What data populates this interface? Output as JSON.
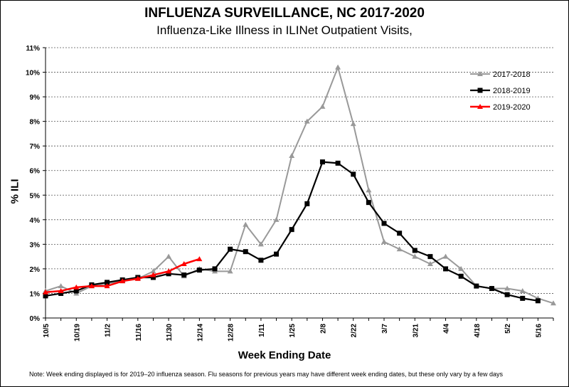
{
  "chart_data": {
    "type": "line",
    "title": "INFLUENZA SURVEILLANCE, NC 2017-2020",
    "subtitle": "Influenza-Like Illness in ILINet Outpatient Visits,",
    "xlabel": "Week Ending Date",
    "ylabel": "% ILI",
    "note": "Note:  Week ending displayed is for 2019–20 influenza season. Flu seasons for previous years may have different week ending dates, but these only vary by a few days",
    "x_tick_labels": [
      "10/5",
      "10/19",
      "11/2",
      "11/16",
      "11/30",
      "12/14",
      "12/28",
      "1/11",
      "1/25",
      "2/8",
      "2/22",
      "3/7",
      "3/21",
      "4/4",
      "4/18",
      "5/2",
      "5/16"
    ],
    "ylim": [
      0,
      11
    ],
    "y_tick_labels": [
      "0%",
      "1%",
      "2%",
      "3%",
      "4%",
      "5%",
      "6%",
      "7%",
      "8%",
      "9%",
      "10%",
      "11%"
    ],
    "grid": "horizontal dashed",
    "legend_position": "top-right",
    "series": [
      {
        "name": "2017-2018",
        "color": "#999999",
        "marker": "triangle",
        "values": [
          1.1,
          1.3,
          1.0,
          1.3,
          1.4,
          1.5,
          1.6,
          1.9,
          2.5,
          1.7,
          2.0,
          1.9,
          1.9,
          3.8,
          3.0,
          4.0,
          6.6,
          8.0,
          8.6,
          10.2,
          7.9,
          5.2,
          3.1,
          2.8,
          2.5,
          2.2,
          2.5,
          2.0,
          1.3,
          1.2,
          1.2,
          1.1,
          0.8,
          0.6
        ]
      },
      {
        "name": "2018-2019",
        "color": "#000000",
        "marker": "square",
        "values": [
          0.9,
          1.0,
          1.1,
          1.35,
          1.45,
          1.55,
          1.65,
          1.65,
          1.8,
          1.75,
          1.95,
          2.0,
          2.8,
          2.7,
          2.35,
          2.6,
          3.6,
          4.65,
          6.35,
          6.3,
          5.85,
          4.7,
          3.85,
          3.45,
          2.75,
          2.5,
          2.0,
          1.7,
          1.3,
          1.2,
          0.95,
          0.8,
          0.7
        ]
      },
      {
        "name": "2019-2020",
        "color": "#ff0000",
        "marker": "triangle",
        "values": [
          1.05,
          1.1,
          1.25,
          1.3,
          1.3,
          1.5,
          1.6,
          1.75,
          1.9,
          2.2,
          2.4
        ]
      }
    ]
  }
}
